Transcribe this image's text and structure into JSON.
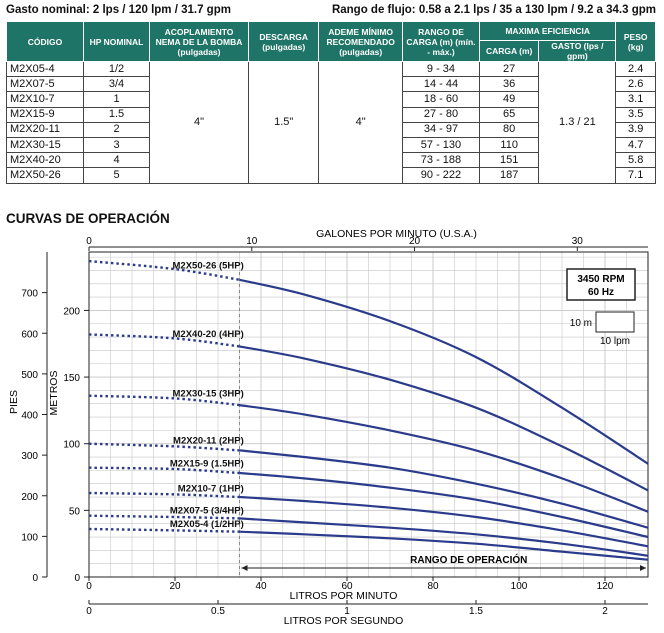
{
  "header": {
    "left": "Gasto nominal: 2 lps / 120 lpm / 31.7 gpm",
    "right": "Rango de flujo: 0.58 a 2.1 lps / 35 a 130 lpm / 9.2 a 34.3 gpm"
  },
  "table": {
    "headers": {
      "codigo": "CÓDIGO",
      "hp": "HP NOMINAL",
      "acoplamiento": "ACOPLAMIENTO NEMA DE LA BOMBA (pulgadas)",
      "descarga": "DESCARGA (pulgadas)",
      "ademe": "ADEME MÍNIMO RECOMENDADO (pulgadas)",
      "rango": "RANGO DE CARGA (m) (mín. - máx.)",
      "maxima": "MAXIMA EFICIENCIA",
      "carga": "CARGA (m)",
      "gasto": "GASTO (lps / gpm)",
      "peso": "PESO (kg)"
    },
    "merged": {
      "acoplamiento": "4\"",
      "descarga": "1.5\"",
      "ademe": "4\"",
      "gasto": "1.3 / 21"
    },
    "rows": [
      {
        "codigo": "M2X05-4",
        "hp": "1/2",
        "rango": "9 - 34",
        "carga": "27",
        "peso": "2.4"
      },
      {
        "codigo": "M2X07-5",
        "hp": "3/4",
        "rango": "14 - 44",
        "carga": "36",
        "peso": "2.6"
      },
      {
        "codigo": "M2X10-7",
        "hp": "1",
        "rango": "18 - 60",
        "carga": "49",
        "peso": "3.1"
      },
      {
        "codigo": "M2X15-9",
        "hp": "1.5",
        "rango": "27 - 80",
        "carga": "65",
        "peso": "3.5"
      },
      {
        "codigo": "M2X20-11",
        "hp": "2",
        "rango": "34 - 97",
        "carga": "80",
        "peso": "3.9"
      },
      {
        "codigo": "M2X30-15",
        "hp": "3",
        "rango": "57 - 130",
        "carga": "110",
        "peso": "4.7"
      },
      {
        "codigo": "M2X40-20",
        "hp": "4",
        "rango": "73 - 188",
        "carga": "151",
        "peso": "5.8"
      },
      {
        "codigo": "M2X50-26",
        "hp": "5",
        "rango": "90 - 222",
        "carga": "187",
        "peso": "7.1"
      }
    ]
  },
  "section_title": "CURVAS DE OPERACIÓN",
  "chart_data": {
    "type": "line",
    "x_axis": {
      "label": "LITROS POR MINUTO",
      "range": [
        0,
        130
      ],
      "ticks": [
        0,
        20,
        40,
        60,
        80,
        100,
        120
      ]
    },
    "x_axis_top": {
      "label": "GALONES POR MINUTO (U.S.A.)",
      "ticks": [
        "0",
        "10",
        "20",
        "30"
      ]
    },
    "x_axis_bottom2": {
      "label": "LITROS POR SEGUNDO",
      "ticks": [
        "0",
        "0.5",
        "1",
        "1.5",
        "2"
      ]
    },
    "y_axis_left": {
      "label": "PIES",
      "range": [
        0,
        800
      ],
      "ticks": [
        0,
        100,
        200,
        300,
        400,
        500,
        600,
        700
      ]
    },
    "y_axis_right": {
      "label": "METROS",
      "ticks": [
        0,
        50,
        100,
        150,
        200
      ]
    },
    "rpm_box": {
      "line1": "3450 RPM",
      "line2": "60 Hz"
    },
    "scale_box": {
      "v": "10 m",
      "h": "10 lpm"
    },
    "range_label": "RANGO DE OPERACIÓN",
    "operating_range_lpm": [
      35,
      130
    ],
    "grid": true,
    "series": [
      {
        "name": "M2X50-26 (5HP)",
        "x": [
          0,
          20,
          35,
          50,
          70,
          90,
          110,
          130
        ],
        "y_m": [
          237,
          231,
          223,
          212,
          192,
          165,
          127,
          85
        ]
      },
      {
        "name": "M2X40-20 (4HP)",
        "x": [
          0,
          20,
          35,
          50,
          70,
          90,
          110,
          130
        ],
        "y_m": [
          182,
          179,
          173,
          164,
          148,
          127,
          98,
          65
        ]
      },
      {
        "name": "M2X30-15 (3HP)",
        "x": [
          0,
          20,
          35,
          50,
          70,
          90,
          110,
          130
        ],
        "y_m": [
          136,
          134,
          129,
          122,
          110,
          95,
          74,
          49
        ]
      },
      {
        "name": "M2X20-11 (2HP)",
        "x": [
          0,
          20,
          35,
          50,
          70,
          90,
          110,
          130
        ],
        "y_m": [
          100,
          98,
          95,
          90,
          82,
          70,
          55,
          37
        ]
      },
      {
        "name": "M2X15-9 (1.5HP)",
        "x": [
          0,
          20,
          35,
          50,
          70,
          90,
          110,
          130
        ],
        "y_m": [
          82,
          81,
          78,
          74,
          67,
          58,
          45,
          30
        ]
      },
      {
        "name": "M2X10-7 (1HP)",
        "x": [
          0,
          20,
          35,
          50,
          70,
          90,
          110,
          130
        ],
        "y_m": [
          63,
          62,
          60,
          57,
          52,
          45,
          35,
          23
        ]
      },
      {
        "name": "M2X07-5 (3/4HP)",
        "x": [
          0,
          20,
          35,
          50,
          70,
          90,
          110,
          130
        ],
        "y_m": [
          46,
          45,
          44,
          41,
          37,
          32,
          25,
          16
        ]
      },
      {
        "name": "M2X05-4 (1/2HP)",
        "x": [
          0,
          20,
          35,
          50,
          70,
          90,
          110,
          130
        ],
        "y_m": [
          36,
          35,
          34,
          32,
          29,
          25,
          19,
          13
        ]
      }
    ]
  }
}
